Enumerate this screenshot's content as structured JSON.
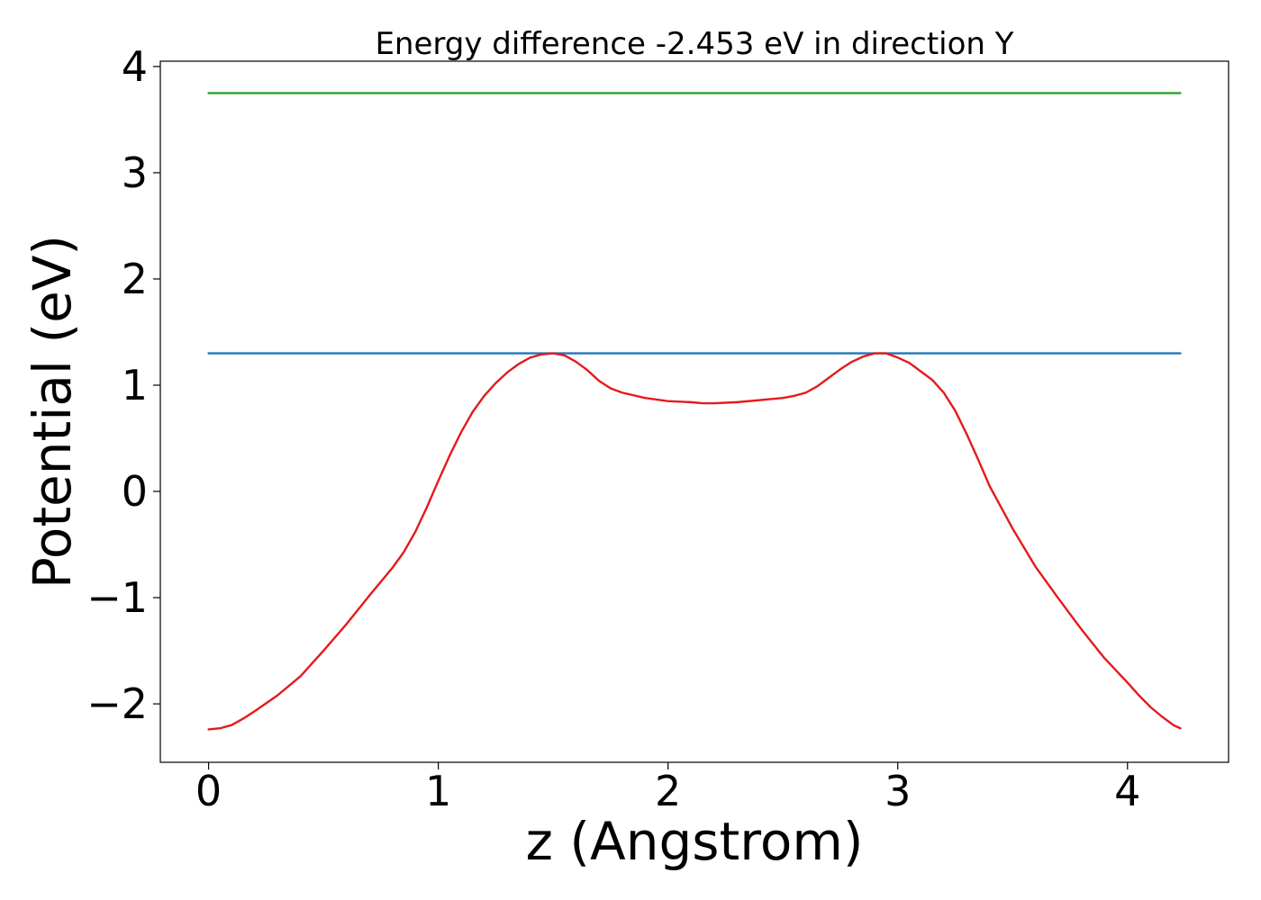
{
  "chart_data": {
    "type": "line",
    "title": "Energy difference -2.453 eV in direction Y",
    "xlabel": "z (Angstrom)",
    "ylabel": "Potential (eV)",
    "xlim": [
      -0.21,
      4.44
    ],
    "ylim": [
      -2.55,
      4.05
    ],
    "xticks": [
      0,
      1,
      2,
      3,
      4
    ],
    "xtick_labels": [
      "0",
      "1",
      "2",
      "3",
      "4"
    ],
    "yticks": [
      -2,
      -1,
      0,
      1,
      2,
      3,
      4
    ],
    "ytick_labels": [
      "−2",
      "−1",
      "0",
      "1",
      "2",
      "3",
      "4"
    ],
    "grid": false,
    "legend": "none",
    "series": [
      {
        "color": "#2ca02c",
        "x": [
          0,
          4.23
        ],
        "y": [
          3.75,
          3.75
        ]
      },
      {
        "color": "#1f77b4",
        "x": [
          0,
          4.23
        ],
        "y": [
          1.3,
          1.3
        ]
      },
      {
        "color": "#e41a1c",
        "x": [
          0,
          0.05,
          0.1,
          0.15,
          0.2,
          0.3,
          0.4,
          0.5,
          0.6,
          0.7,
          0.8,
          0.85,
          0.9,
          0.95,
          1.0,
          1.05,
          1.1,
          1.15,
          1.2,
          1.25,
          1.3,
          1.35,
          1.4,
          1.45,
          1.5,
          1.55,
          1.6,
          1.65,
          1.7,
          1.75,
          1.8,
          1.9,
          2.0,
          2.1,
          2.15,
          2.2,
          2.3,
          2.4,
          2.5,
          2.55,
          2.6,
          2.65,
          2.7,
          2.75,
          2.8,
          2.85,
          2.9,
          2.95,
          3.0,
          3.05,
          3.1,
          3.15,
          3.2,
          3.25,
          3.3,
          3.35,
          3.4,
          3.5,
          3.6,
          3.7,
          3.8,
          3.9,
          4.0,
          4.05,
          4.1,
          4.15,
          4.2,
          4.23
        ],
        "y": [
          -2.24,
          -2.23,
          -2.2,
          -2.14,
          -2.07,
          -1.92,
          -1.74,
          -1.5,
          -1.25,
          -0.98,
          -0.72,
          -0.57,
          -0.38,
          -0.15,
          0.1,
          0.34,
          0.56,
          0.75,
          0.9,
          1.02,
          1.12,
          1.2,
          1.26,
          1.29,
          1.3,
          1.28,
          1.22,
          1.14,
          1.04,
          0.97,
          0.93,
          0.88,
          0.85,
          0.84,
          0.83,
          0.83,
          0.84,
          0.86,
          0.88,
          0.9,
          0.93,
          0.99,
          1.07,
          1.15,
          1.22,
          1.27,
          1.3,
          1.3,
          1.26,
          1.21,
          1.13,
          1.05,
          0.93,
          0.76,
          0.54,
          0.3,
          0.05,
          -0.35,
          -0.71,
          -1.01,
          -1.3,
          -1.57,
          -1.8,
          -1.92,
          -2.03,
          -2.12,
          -2.2,
          -2.23
        ]
      }
    ]
  }
}
